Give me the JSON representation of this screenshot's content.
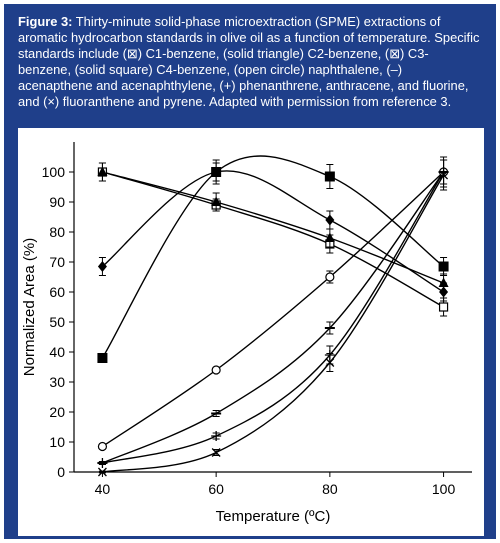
{
  "caption": {
    "label": "Figure 3:",
    "text": " Thirty-minute solid-phase microextraction (SPME) extractions of aromatic hydrocarbon standards in olive oil as a function of temperature. Specific standards include (⊠) C1-benzene, (solid triangle) C2-benzene, (⊠) C3-benzene, (solid square) C4-benzene, (open circle) naphthalene, (–) acenapthene and acenaphthylene, (+) phenanthrene, anthracene, and fluorine, and (×) fluoranthene and pyrene. Adapted with permission from reference 3."
  },
  "chart_data": {
    "type": "line",
    "title": "",
    "xlabel": "Temperature (ºC)",
    "ylabel": "Normalized Area (%)",
    "xlim": [
      35,
      105
    ],
    "ylim": [
      0,
      110
    ],
    "xticks": [
      40,
      60,
      80,
      100
    ],
    "yticks": [
      0,
      10,
      20,
      30,
      40,
      50,
      60,
      70,
      80,
      90,
      100
    ],
    "grid": false,
    "x": [
      40,
      60,
      80,
      100
    ],
    "series": [
      {
        "name": "C1-benzene",
        "marker": "open-square",
        "values": [
          100,
          89,
          76,
          55
        ],
        "err": [
          3,
          2,
          3,
          3
        ]
      },
      {
        "name": "C2-benzene",
        "marker": "solid-triangle",
        "values": [
          100,
          90,
          78,
          63
        ],
        "err": [
          3,
          3,
          3,
          3
        ]
      },
      {
        "name": "C3-benzene",
        "marker": "solid-diamond",
        "values": [
          68.5,
          100,
          84,
          60
        ],
        "err": [
          3,
          3,
          3,
          3
        ]
      },
      {
        "name": "C4-benzene",
        "marker": "solid-square",
        "values": [
          38,
          100,
          98.5,
          68.5
        ],
        "err": [
          1.5,
          4,
          4,
          3
        ]
      },
      {
        "name": "naphthalene",
        "marker": "open-circle",
        "values": [
          8.5,
          34,
          65,
          100
        ],
        "err": [
          0.5,
          0.5,
          2,
          4
        ]
      },
      {
        "name": "acenapthene and acenaphthylene",
        "marker": "dash",
        "values": [
          3,
          19.5,
          48,
          100
        ],
        "err": [
          0.5,
          1,
          2,
          4
        ]
      },
      {
        "name": "phenanthrene, anthracene, and fluorine",
        "marker": "plus",
        "values": [
          3,
          12,
          39,
          100
        ],
        "err": [
          0.5,
          1,
          3,
          5
        ]
      },
      {
        "name": "fluoranthene and pyrene",
        "marker": "cross",
        "values": [
          0,
          6.5,
          36.5,
          99
        ],
        "err": [
          0.3,
          1,
          3,
          5
        ]
      }
    ]
  }
}
